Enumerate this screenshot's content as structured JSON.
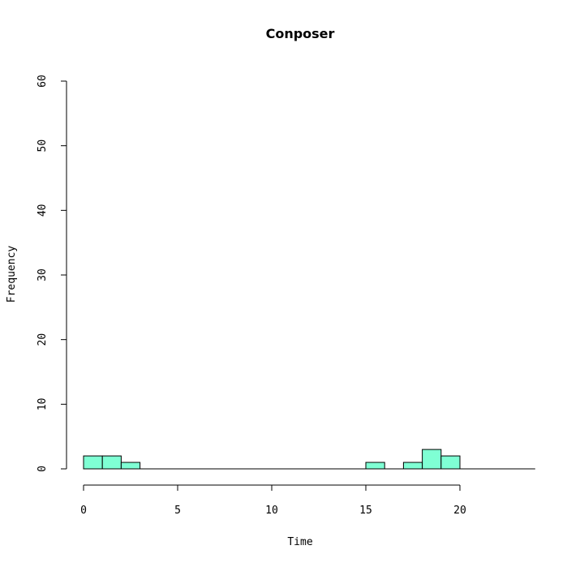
{
  "chart_data": {
    "type": "bar",
    "title": "Conposer",
    "xlabel": "Time",
    "ylabel": "Frequency",
    "xlim": [
      0,
      24
    ],
    "ylim": [
      0,
      60
    ],
    "x_ticks": [
      0,
      5,
      10,
      15,
      20
    ],
    "y_ticks": [
      0,
      10,
      20,
      30,
      40,
      50,
      60
    ],
    "bin_width": 1,
    "bins": [
      {
        "start": 0,
        "end": 1,
        "value": 2
      },
      {
        "start": 1,
        "end": 2,
        "value": 2
      },
      {
        "start": 2,
        "end": 3,
        "value": 1
      },
      {
        "start": 15,
        "end": 16,
        "value": 1
      },
      {
        "start": 17,
        "end": 18,
        "value": 1
      },
      {
        "start": 18,
        "end": 19,
        "value": 3
      },
      {
        "start": 19,
        "end": 20,
        "value": 2
      }
    ],
    "bar_color": "#7fffd4",
    "grid": false
  }
}
